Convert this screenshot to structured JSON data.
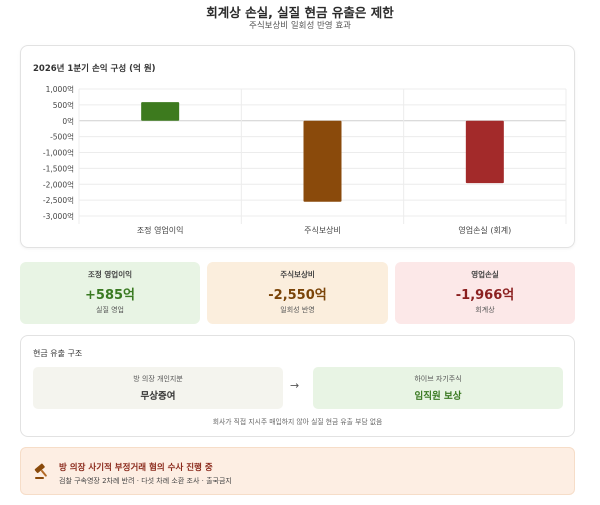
{
  "header": {
    "title": "회계상 손실, 실질 현금 유출은 제한",
    "subtitle": "주식보상비 일회성 반영 효과"
  },
  "chart_data": {
    "type": "bar",
    "title": "2026년 1분기 손익 구성 (억 원)",
    "categories": [
      "조정 영업이익",
      "주식보상비",
      "영업손실 (회계)"
    ],
    "values": [
      585,
      -2550,
      -1966
    ],
    "colors": [
      "#3d7a1e",
      "#8a4a0b",
      "#a32a2a"
    ],
    "ylim": [
      -3000,
      1000
    ],
    "yticks": [
      1000,
      500,
      0,
      -500,
      -1000,
      -1500,
      -2000,
      -2500,
      -3000
    ],
    "ytick_labels": [
      "1,000억",
      "500억",
      "0억",
      "-500억",
      "-1,000억",
      "-1,500억",
      "-2,000억",
      "-2,500억",
      "-3,000억"
    ],
    "grid": true,
    "legend": "none"
  },
  "stats": [
    {
      "label": "조정 영업이익",
      "value": "+585억",
      "sub": "실질 영업"
    },
    {
      "label": "주식보상비",
      "value": "-2,550억",
      "sub": "일회성 반영"
    },
    {
      "label": "영업손실",
      "value": "-1,966억",
      "sub": "회계상"
    }
  ],
  "flow": {
    "title": "현금 유출 구조",
    "left_small": "방 의장 개인지분",
    "left_main": "무상증여",
    "arrow": "→",
    "right_small": "하이브 자기주식",
    "right_main": "임직원 보상",
    "note": "회사가 직접 지시주 매입하지 않아 실질 현금 유출 부담 없음"
  },
  "alert": {
    "icon": "gavel-icon",
    "title": "방 의장 사기적 부정거래 혐의 수사 진행 중",
    "sub": "검찰 구속영장 2차례 반려 · 다섯 차례 소환 조사 · 출국금지"
  }
}
